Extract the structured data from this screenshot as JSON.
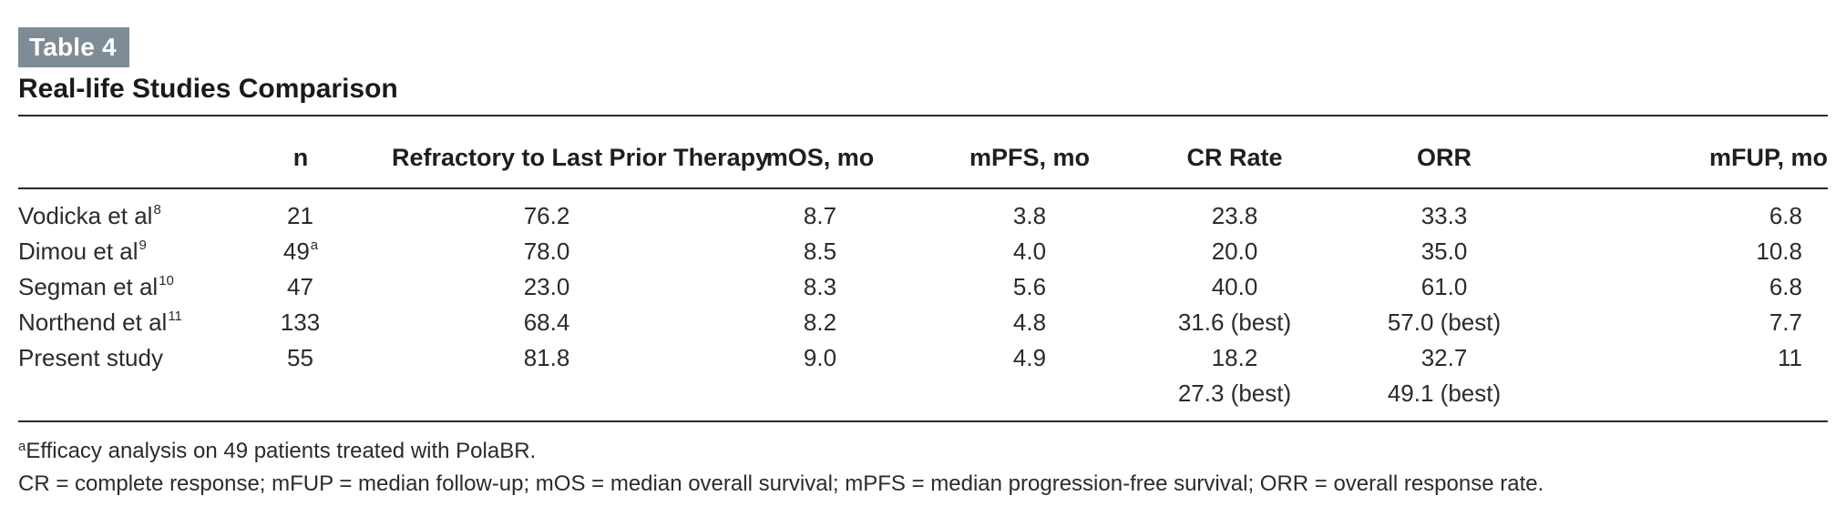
{
  "header": {
    "badge": "Table 4",
    "title": "Real-life Studies Comparison"
  },
  "table": {
    "columns": [
      "",
      "n",
      "Refractory to Last Prior Therapy",
      "mOS, mo",
      "mPFS, mo",
      "CR Rate",
      "ORR",
      "mFUP, mo"
    ],
    "rows": [
      {
        "study": "Vodicka et al",
        "ref": "8",
        "n": "21",
        "n_sup": "",
        "refractory": "76.2",
        "mos": "8.7",
        "mpfs": "3.8",
        "cr": [
          "23.8"
        ],
        "orr": [
          "33.3"
        ],
        "mfup": "6.8"
      },
      {
        "study": "Dimou et al",
        "ref": "9",
        "n": "49",
        "n_sup": "a",
        "refractory": "78.0",
        "mos": "8.5",
        "mpfs": "4.0",
        "cr": [
          "20.0"
        ],
        "orr": [
          "35.0"
        ],
        "mfup": "10.8"
      },
      {
        "study": "Segman et al",
        "ref": "10",
        "n": "47",
        "n_sup": "",
        "refractory": "23.0",
        "mos": "8.3",
        "mpfs": "5.6",
        "cr": [
          "40.0"
        ],
        "orr": [
          "61.0"
        ],
        "mfup": "6.8"
      },
      {
        "study": "Northend et al",
        "ref": "11",
        "n": "133",
        "n_sup": "",
        "refractory": "68.4",
        "mos": "8.2",
        "mpfs": "4.8",
        "cr": [
          "31.6 (best)"
        ],
        "orr": [
          "57.0 (best)"
        ],
        "mfup": "7.7"
      },
      {
        "study": "Present study",
        "ref": "",
        "n": "55",
        "n_sup": "",
        "refractory": "81.8",
        "mos": "9.0",
        "mpfs": "4.9",
        "cr": [
          "18.2",
          "27.3 (best)"
        ],
        "orr": [
          "32.7",
          "49.1 (best)"
        ],
        "mfup": "11"
      }
    ]
  },
  "footnotes": {
    "a_marker": "a",
    "a_text": "Efficacy analysis on 49 patients treated with PolaBR.",
    "abbreviations": "CR = complete response; mFUP = median follow-up; mOS = median overall survival; mPFS = median progression-free survival; ORR = overall response rate."
  }
}
